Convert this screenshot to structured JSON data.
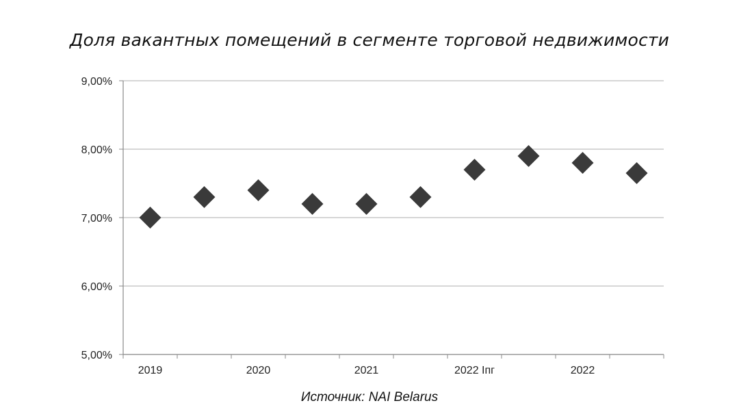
{
  "chart_data": {
    "type": "scatter",
    "title": "Доля вакантных помещений в сегменте торговой недвижимости",
    "source": "Источник: NAI Belarus",
    "marker": "diamond",
    "marker_color": "#3a3a3a",
    "grid_color": "#c8c8c8",
    "grid": true,
    "y_ticks": [
      "5,00%",
      "6,00%",
      "7,00%",
      "8,00%",
      "9,00%"
    ],
    "ylim": [
      5,
      9
    ],
    "x_labels": [
      "2019",
      "2020",
      "2021",
      "2022 Iпг",
      "2022"
    ],
    "values": [
      7.0,
      7.3,
      7.4,
      7.2,
      7.2,
      7.3,
      7.7,
      7.9,
      7.8,
      7.65
    ]
  }
}
